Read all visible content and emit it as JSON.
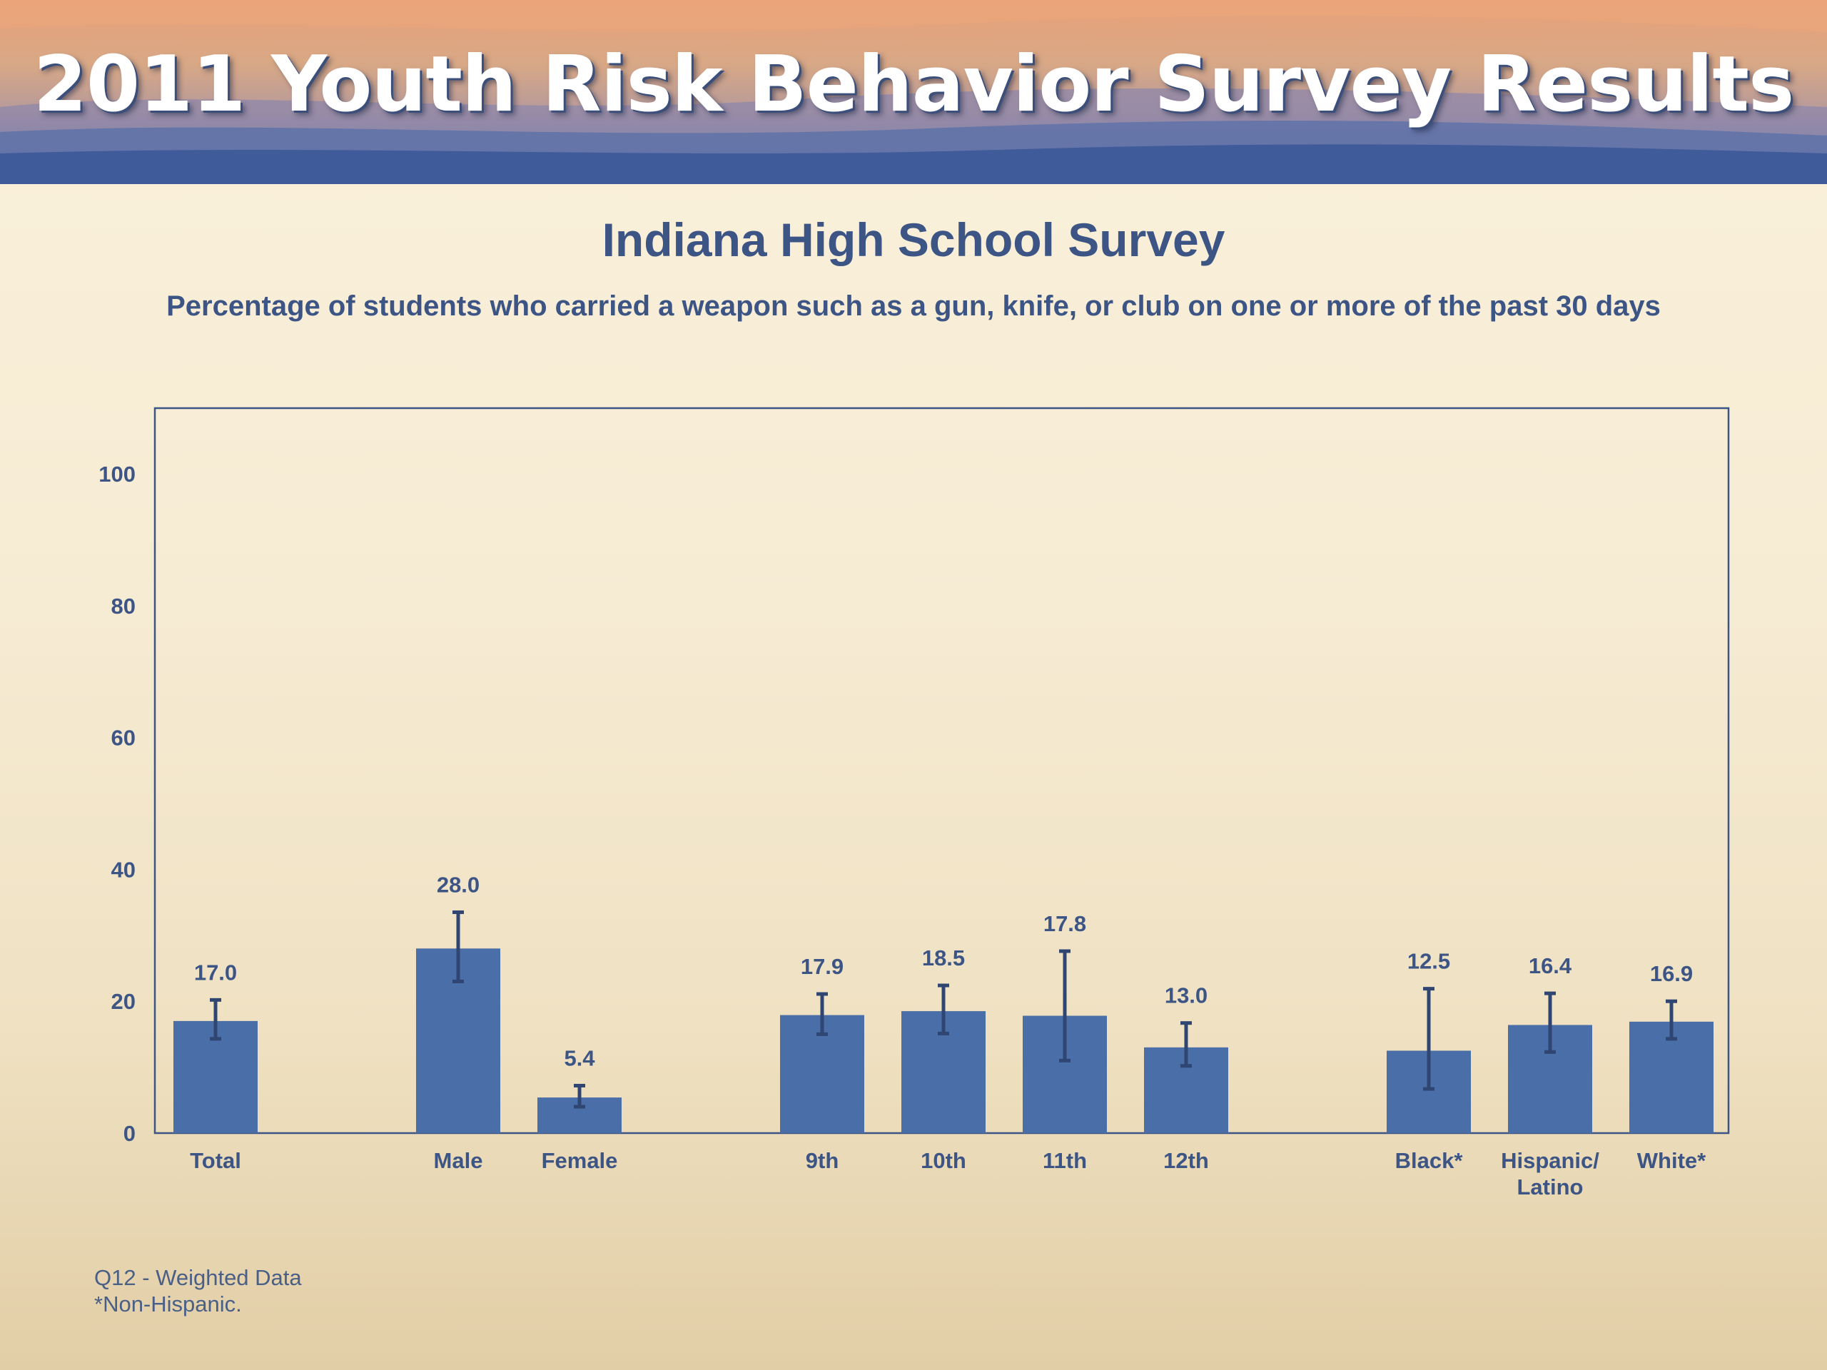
{
  "banner": {
    "title": "2011 Youth Risk Behavior Survey Results"
  },
  "chart_data": {
    "type": "bar",
    "title": "Indiana High School Survey",
    "subtitle": "Percentage of students who carried a weapon such as a gun, knife, or club on one or more of the past 30 days",
    "xlabel": "",
    "ylabel": "",
    "ylim": [
      0,
      110
    ],
    "yticks": [
      0,
      20,
      40,
      60,
      80,
      100
    ],
    "grid": false,
    "legend": "none",
    "bar_color": "#4a6ea8",
    "categories": [
      "Total",
      "Male",
      "Female",
      "9th",
      "10th",
      "11th",
      "12th",
      "Black*",
      "Hispanic/ Latino",
      "White*"
    ],
    "category_lines": [
      [
        "Total"
      ],
      [
        "Male"
      ],
      [
        "Female"
      ],
      [
        "9th"
      ],
      [
        "10th"
      ],
      [
        "11th"
      ],
      [
        "12th"
      ],
      [
        "Black*"
      ],
      [
        "Hispanic/",
        "Latino"
      ],
      [
        "White*"
      ]
    ],
    "groups": [
      [
        "Total"
      ],
      [
        "Male",
        "Female"
      ],
      [
        "9th",
        "10th",
        "11th",
        "12th"
      ],
      [
        "Black*",
        "Hispanic/ Latino",
        "White*"
      ]
    ],
    "values": [
      17.0,
      28.0,
      5.4,
      17.9,
      18.5,
      17.8,
      13.0,
      12.5,
      16.4,
      16.9
    ],
    "value_labels": [
      "17.0",
      "28.0",
      "5.4",
      "17.9",
      "18.5",
      "17.8",
      "13.0",
      "12.5",
      "16.4",
      "16.9"
    ],
    "error_low": [
      14.3,
      23.0,
      4.0,
      15.0,
      15.1,
      11.0,
      10.2,
      6.7,
      12.3,
      14.3
    ],
    "error_high": [
      20.2,
      33.5,
      7.2,
      21.1,
      22.4,
      27.6,
      16.7,
      21.9,
      21.2,
      20.0
    ]
  },
  "footnote": {
    "line1": "Q12 - Weighted Data",
    "line2": "*Non-Hispanic."
  }
}
